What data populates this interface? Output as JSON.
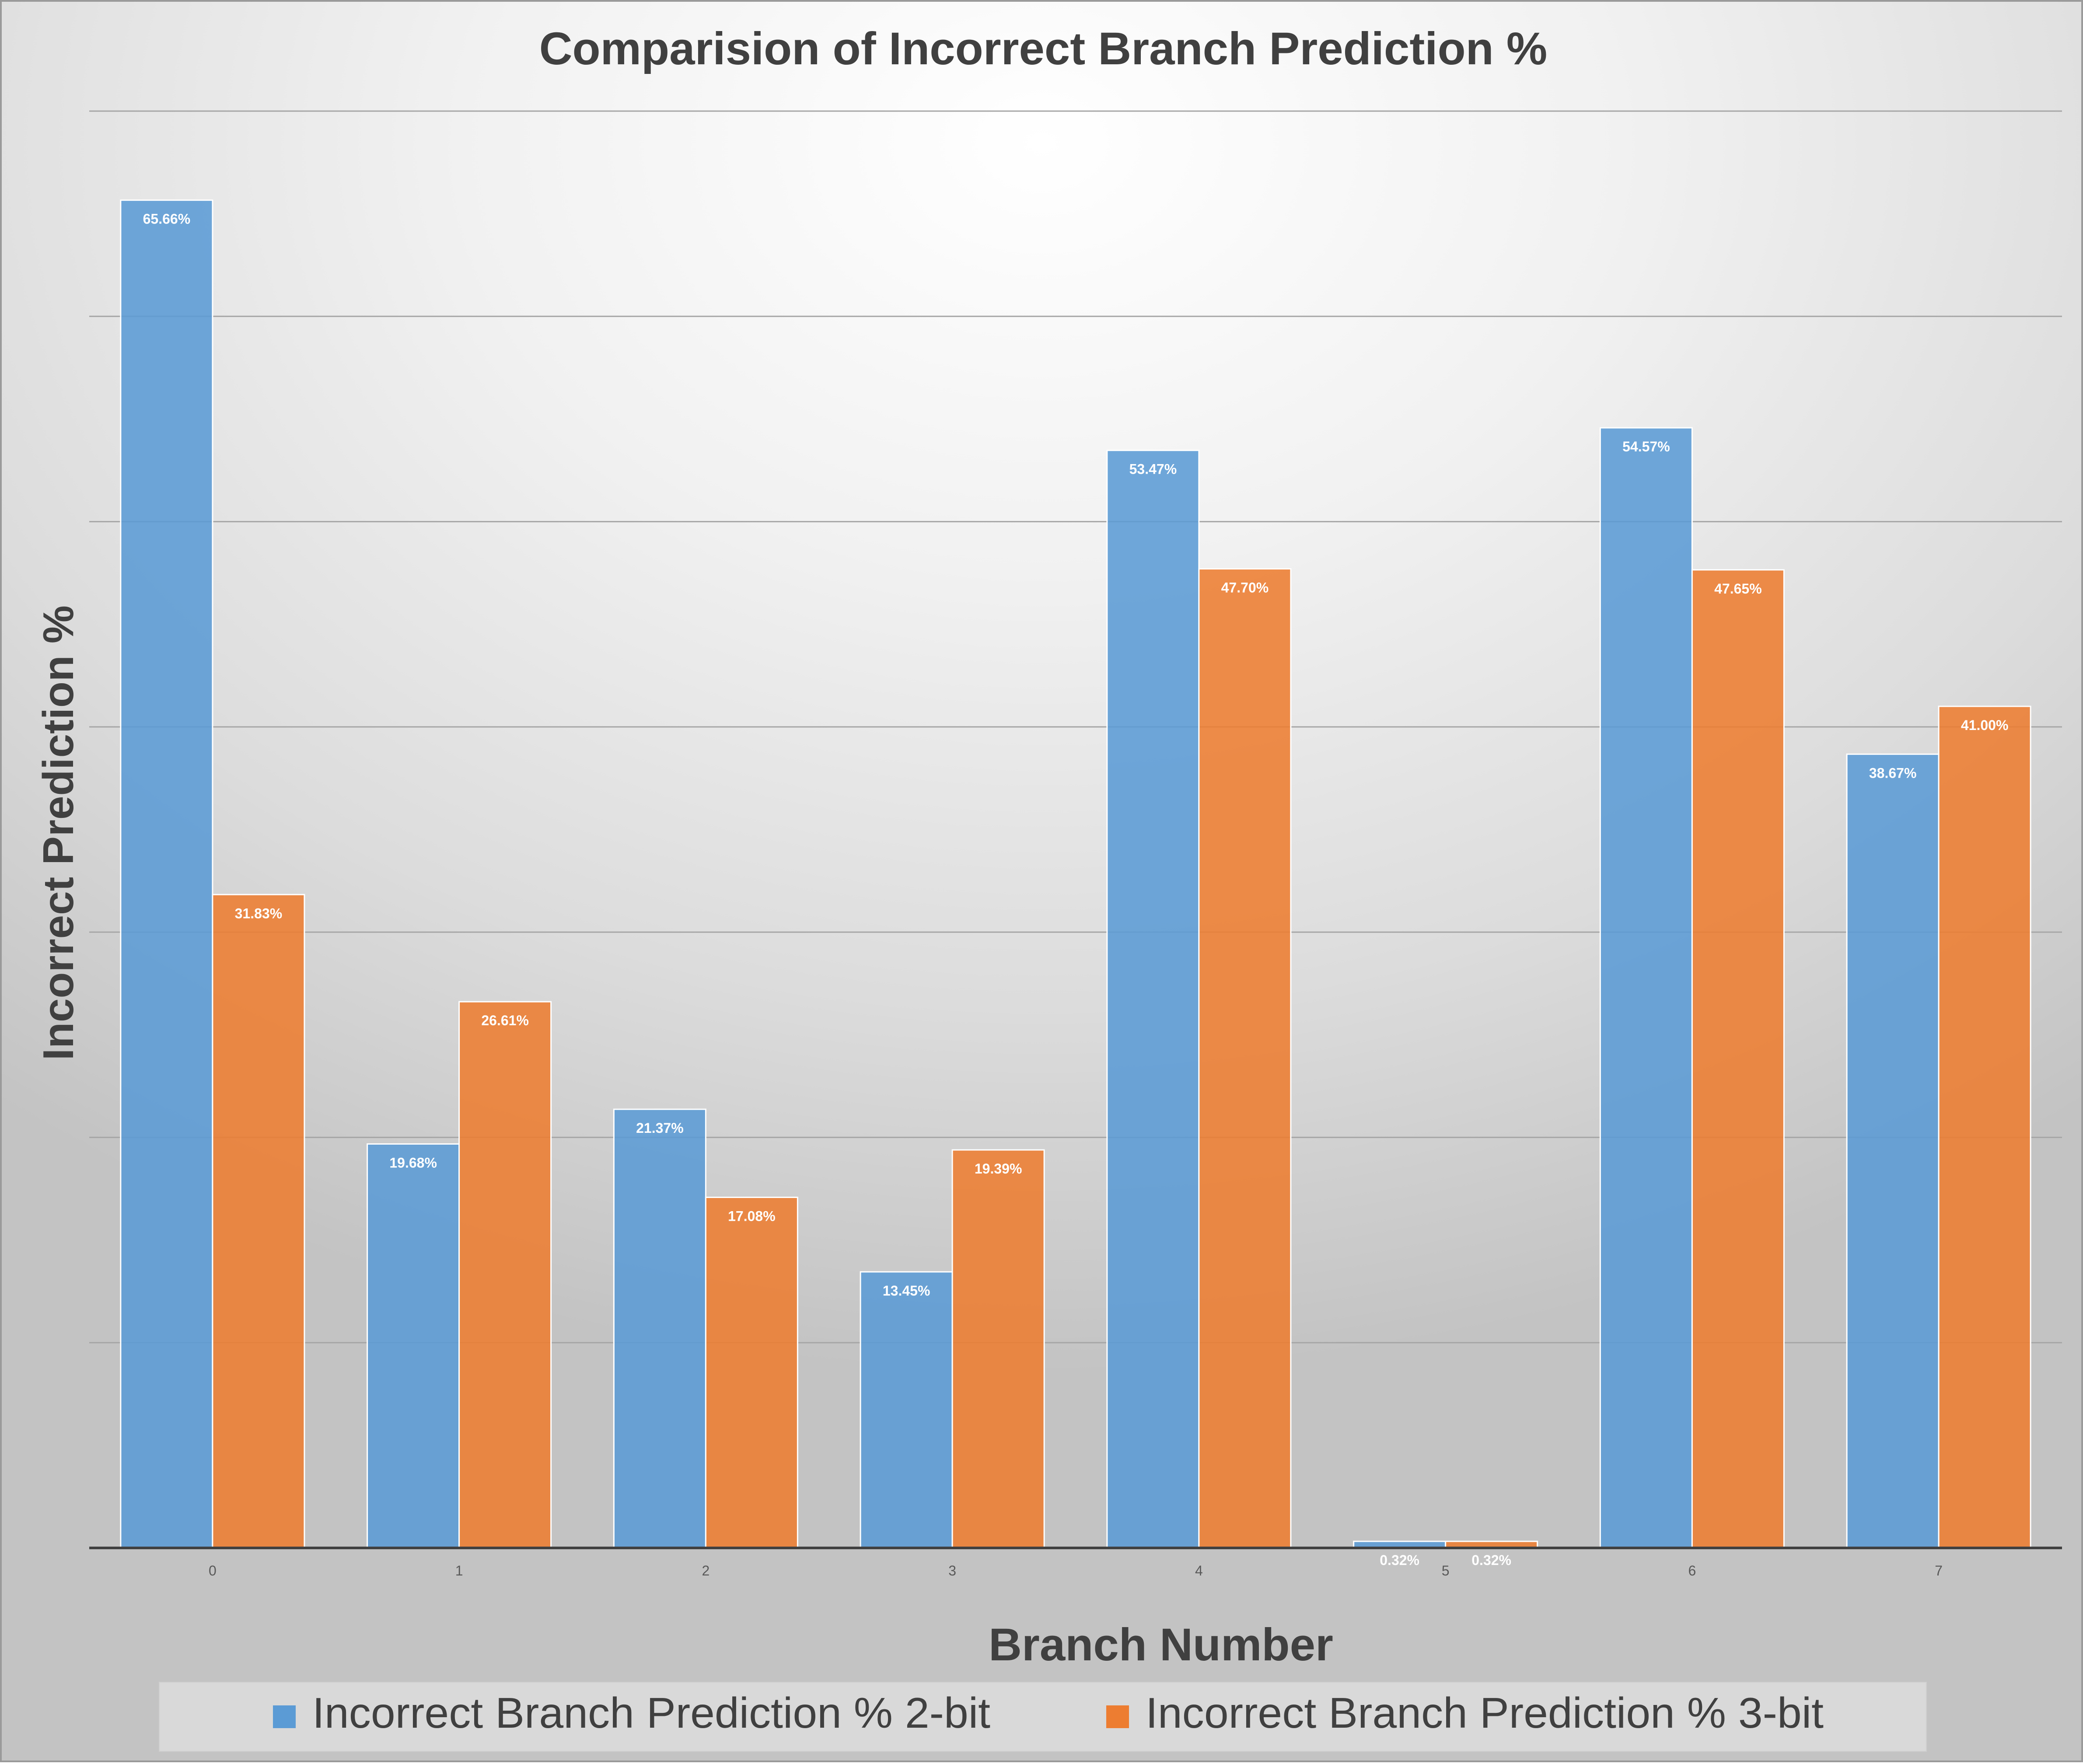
{
  "chart_data": {
    "type": "bar",
    "title": "Comparision of Incorrect Branch Prediction %",
    "xlabel": "Branch Number",
    "ylabel": "Incorrect Prediction %",
    "categories": [
      "0",
      "1",
      "2",
      "3",
      "4",
      "5",
      "6",
      "7"
    ],
    "series": [
      {
        "name": "Incorrect Branch Prediction % 2-bit",
        "color": "#5b9bd5",
        "values": [
          65.66,
          19.68,
          21.37,
          13.45,
          53.47,
          0.32,
          54.57,
          38.67
        ],
        "labels": [
          "65.66%",
          "19.68%",
          "21.37%",
          "13.45%",
          "53.47%",
          "0.32%",
          "54.57%",
          "38.67%"
        ]
      },
      {
        "name": "Incorrect Branch Prediction % 3-bit",
        "color": "#ed7d31",
        "values": [
          31.83,
          26.61,
          17.08,
          19.39,
          47.7,
          0.32,
          47.65,
          41.0
        ],
        "labels": [
          "31.83%",
          "26.61%",
          "17.08%",
          "19.39%",
          "47.70%",
          "0.32%",
          "47.65%",
          "41.00%"
        ]
      }
    ],
    "ylim": [
      0,
      70
    ],
    "gridlines": true,
    "legend": "bottom"
  }
}
